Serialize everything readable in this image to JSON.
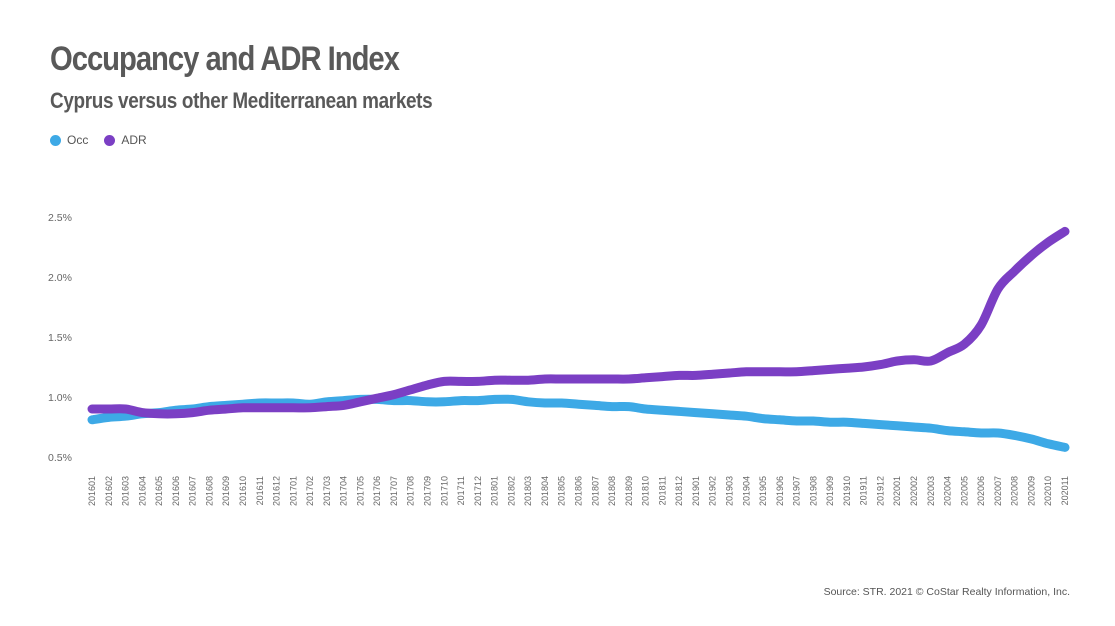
{
  "header": {
    "title": "Occupancy and ADR Index",
    "subtitle": "Cyprus versus other Mediterranean markets"
  },
  "footer": {
    "source": "Source: STR. 2021 © CoStar Realty Information, Inc."
  },
  "colors": {
    "occ": "#3da9e6",
    "adr": "#7b3fc4"
  },
  "chart_data": {
    "type": "line",
    "title": "Occupancy and ADR Index",
    "subtitle": "Cyprus versus other Mediterranean markets",
    "xlabel": "",
    "ylabel": "",
    "ylim": [
      0.5,
      2.5
    ],
    "yticks": [
      "0.5%",
      "1.0%",
      "1.5%",
      "2.0%",
      "2.5%"
    ],
    "ytick_values": [
      0.5,
      1.0,
      1.5,
      2.0,
      2.5
    ],
    "legend_position": "top-left",
    "grid": false,
    "x": [
      "201601",
      "201602",
      "201603",
      "201604",
      "201605",
      "201606",
      "201607",
      "201608",
      "201609",
      "201610",
      "201611",
      "201612",
      "201701",
      "201702",
      "201703",
      "201704",
      "201705",
      "201706",
      "201707",
      "201708",
      "201709",
      "201710",
      "201711",
      "201712",
      "201801",
      "201802",
      "201803",
      "201804",
      "201805",
      "201806",
      "201807",
      "201808",
      "201809",
      "201810",
      "201811",
      "201812",
      "201901",
      "201902",
      "201903",
      "201904",
      "201905",
      "201906",
      "201907",
      "201908",
      "201909",
      "201910",
      "201911",
      "201912",
      "202001",
      "202002",
      "202003",
      "202004",
      "202005",
      "202006",
      "202007",
      "202008",
      "202009",
      "202010",
      "202011"
    ],
    "series": [
      {
        "name": "Occ",
        "values": [
          0.81,
          0.83,
          0.84,
          0.86,
          0.87,
          0.89,
          0.9,
          0.92,
          0.93,
          0.94,
          0.95,
          0.95,
          0.95,
          0.94,
          0.96,
          0.97,
          0.98,
          0.98,
          0.97,
          0.97,
          0.96,
          0.96,
          0.97,
          0.97,
          0.98,
          0.98,
          0.96,
          0.95,
          0.95,
          0.94,
          0.93,
          0.92,
          0.92,
          0.9,
          0.89,
          0.88,
          0.87,
          0.86,
          0.85,
          0.84,
          0.82,
          0.81,
          0.8,
          0.8,
          0.79,
          0.79,
          0.78,
          0.77,
          0.76,
          0.75,
          0.74,
          0.72,
          0.71,
          0.7,
          0.7,
          0.68,
          0.65,
          0.61,
          0.58
        ]
      },
      {
        "name": "ADR",
        "values": [
          0.9,
          0.9,
          0.9,
          0.87,
          0.86,
          0.86,
          0.87,
          0.89,
          0.9,
          0.91,
          0.91,
          0.91,
          0.91,
          0.91,
          0.92,
          0.93,
          0.96,
          0.99,
          1.02,
          1.06,
          1.1,
          1.13,
          1.13,
          1.13,
          1.14,
          1.14,
          1.14,
          1.15,
          1.15,
          1.15,
          1.15,
          1.15,
          1.15,
          1.16,
          1.17,
          1.18,
          1.18,
          1.19,
          1.2,
          1.21,
          1.21,
          1.21,
          1.21,
          1.22,
          1.23,
          1.24,
          1.25,
          1.27,
          1.3,
          1.31,
          1.3,
          1.37,
          1.44,
          1.6,
          1.9,
          2.05,
          2.18,
          2.29,
          2.38
        ]
      }
    ]
  }
}
